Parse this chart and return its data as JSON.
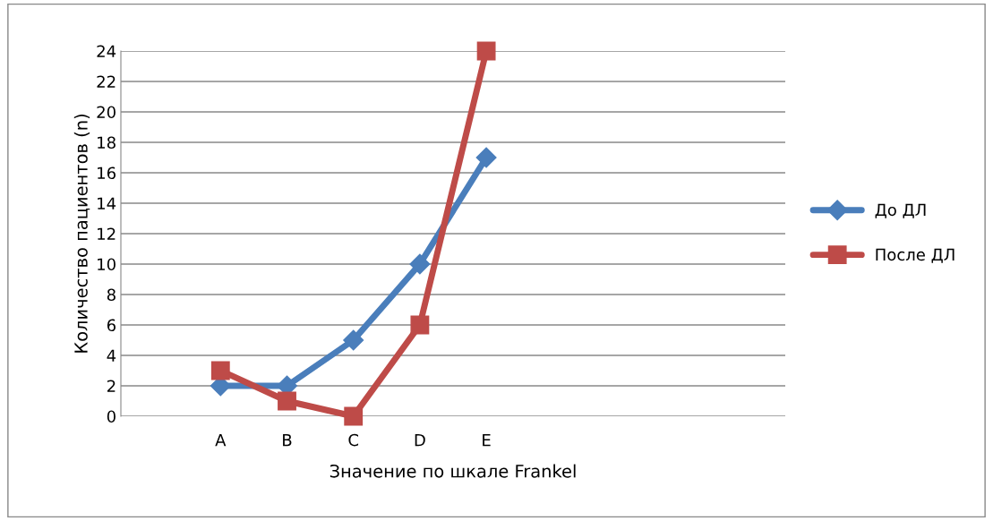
{
  "chart_data": {
    "type": "line",
    "xlabel": "Значение по шкале Frankel",
    "ylabel": "Количество пациентов (n)",
    "categories": [
      null,
      "A",
      "B",
      "C",
      "D",
      "E",
      null,
      null,
      null,
      null
    ],
    "series": [
      {
        "name": "До ДЛ",
        "color": "#4a7ebb",
        "marker": "diamond",
        "values": [
          null,
          2,
          2,
          5,
          10,
          17,
          null,
          null,
          null,
          null
        ]
      },
      {
        "name": "После ДЛ",
        "color": "#be4b48",
        "marker": "square",
        "values": [
          null,
          3,
          1,
          0,
          6,
          24,
          null,
          null,
          null,
          null
        ]
      }
    ],
    "ylim": [
      0,
      24
    ],
    "yticks": [
      0,
      2,
      4,
      6,
      8,
      10,
      12,
      14,
      16,
      18,
      20,
      22,
      24
    ],
    "grid": "y",
    "legend": "right",
    "line_style": "solid"
  }
}
